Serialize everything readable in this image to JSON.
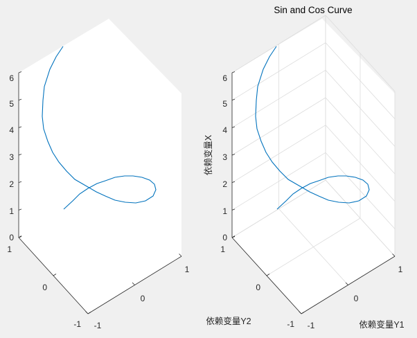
{
  "colors": {
    "figure_bg": "#f0f0f0",
    "pane_bg": "#ffffff",
    "axis": "#262626",
    "grid": "#dcdcdc",
    "series": "#0072bd"
  },
  "chart_data": [
    {
      "type": "line",
      "title": "",
      "xlabel": "",
      "ylabel": "",
      "zlabel": "",
      "grid": false,
      "axis_ticks": {
        "y1": [
          "-1",
          "0",
          "1"
        ],
        "y2": [
          "-1",
          "0",
          "1"
        ],
        "z": [
          "0",
          "1",
          "2",
          "3",
          "4",
          "5",
          "6"
        ]
      },
      "series": [
        {
          "name": "",
          "x": [],
          "y": [],
          "z": []
        }
      ]
    },
    {
      "type": "line",
      "title": "Sin and Cos Curve",
      "xlabel": "依赖变量Y1",
      "ylabel": "依赖变量Y2",
      "zlabel": "依赖变量X",
      "grid": true,
      "axis_ticks": {
        "y1": [
          "-1",
          "0",
          "1"
        ],
        "y2": [
          "-1",
          "0",
          "1"
        ],
        "z": [
          "0",
          "1",
          "2",
          "3",
          "4",
          "5",
          "6"
        ]
      },
      "series": [
        {
          "name": "",
          "x": [],
          "y": [],
          "z": []
        }
      ]
    }
  ]
}
